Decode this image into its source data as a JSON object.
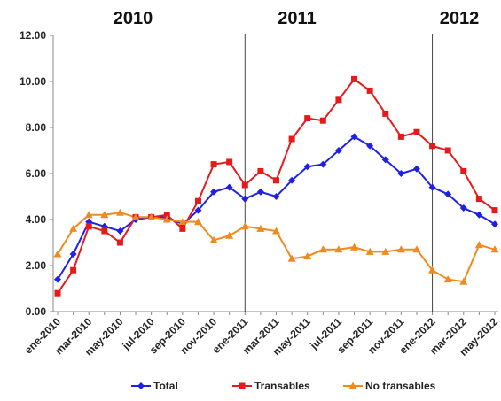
{
  "chart_data": {
    "type": "line",
    "annotations": [
      "2010",
      "2011",
      "2012"
    ],
    "categories": [
      "ene-2010",
      null,
      "mar-2010",
      null,
      "may-2010",
      null,
      "jul-2010",
      null,
      "sep-2010",
      null,
      "nov-2010",
      null,
      "ene-2011",
      null,
      "mar-2011",
      null,
      "may-2011",
      null,
      "jul-2011",
      null,
      "sep-2011",
      null,
      "nov-2011",
      null,
      "ene-2012",
      null,
      "mar-2012",
      null,
      "may-2012"
    ],
    "series": [
      {
        "name": "Total",
        "color": "#1f1fe6",
        "marker": "diamond",
        "values": [
          1.4,
          2.5,
          3.9,
          3.7,
          3.5,
          4.0,
          4.1,
          4.1,
          3.8,
          4.4,
          5.2,
          5.4,
          4.9,
          5.2,
          5.0,
          5.7,
          6.3,
          6.4,
          7.0,
          7.6,
          7.2,
          6.6,
          6.0,
          6.2,
          5.4,
          5.1,
          4.5,
          4.2,
          3.8
        ]
      },
      {
        "name": "Transables",
        "color": "#e61a1a",
        "marker": "square",
        "values": [
          0.8,
          1.8,
          3.7,
          3.5,
          3.0,
          4.1,
          4.1,
          4.2,
          3.6,
          4.8,
          6.4,
          6.5,
          5.5,
          6.1,
          5.7,
          7.5,
          8.4,
          8.3,
          9.2,
          10.1,
          9.6,
          8.6,
          7.6,
          7.8,
          7.2,
          7.0,
          6.1,
          4.9,
          4.4
        ]
      },
      {
        "name": "No transables",
        "color": "#f08a1e",
        "marker": "triangle",
        "values": [
          2.5,
          3.6,
          4.2,
          4.2,
          4.3,
          4.1,
          4.1,
          4.0,
          3.9,
          3.9,
          3.1,
          3.3,
          3.7,
          3.6,
          3.5,
          2.3,
          2.4,
          2.7,
          2.7,
          2.8,
          2.6,
          2.6,
          2.7,
          2.7,
          1.8,
          1.4,
          1.3,
          2.9,
          2.7
        ]
      }
    ],
    "ylim": [
      0,
      12
    ],
    "yticks": [
      {
        "value": 0,
        "label": "0.00"
      },
      {
        "value": 2,
        "label": "2.00"
      },
      {
        "value": 4,
        "label": "4.00"
      },
      {
        "value": 6,
        "label": "6.00"
      },
      {
        "value": 8,
        "label": "8.00"
      },
      {
        "value": 10,
        "label": "10.00"
      },
      {
        "value": 12,
        "label": "12.00"
      }
    ],
    "legend": "bottom"
  }
}
